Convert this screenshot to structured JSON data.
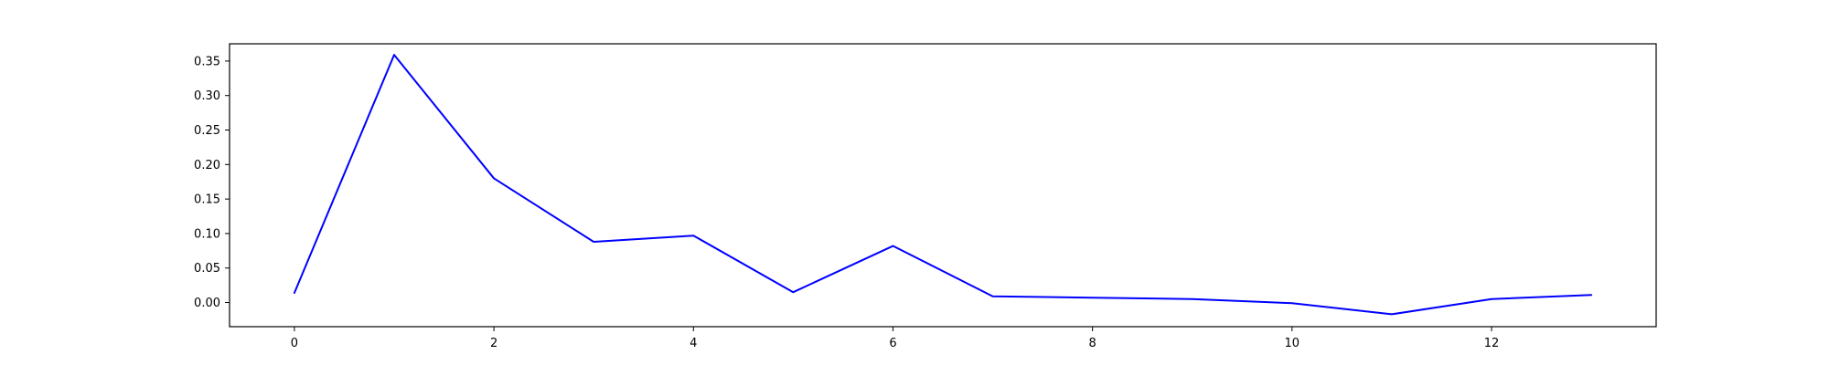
{
  "chart_data": {
    "type": "line",
    "title": "",
    "xlabel": "",
    "ylabel": "",
    "xlim": [
      -0.65,
      13.65
    ],
    "ylim": [
      -0.035,
      0.375
    ],
    "grid": false,
    "legend": "none",
    "x_ticks": [
      0,
      2,
      4,
      6,
      8,
      10,
      12
    ],
    "x_tick_labels": [
      "0",
      "2",
      "4",
      "6",
      "8",
      "10",
      "12"
    ],
    "y_ticks": [
      0.0,
      0.05,
      0.1,
      0.15,
      0.2,
      0.25,
      0.3,
      0.35
    ],
    "y_tick_labels": [
      "0.00",
      "0.05",
      "0.10",
      "0.15",
      "0.20",
      "0.25",
      "0.30",
      "0.35"
    ],
    "series": [
      {
        "color": "#0000ff",
        "x": [
          0,
          1,
          2,
          3,
          4,
          5,
          6,
          7,
          8,
          9,
          10,
          11,
          12,
          13
        ],
        "y": [
          0.014,
          0.359,
          0.18,
          0.088,
          0.097,
          0.015,
          0.082,
          0.009,
          0.007,
          0.005,
          -0.001,
          -0.017,
          0.005,
          0.011
        ]
      }
    ]
  }
}
